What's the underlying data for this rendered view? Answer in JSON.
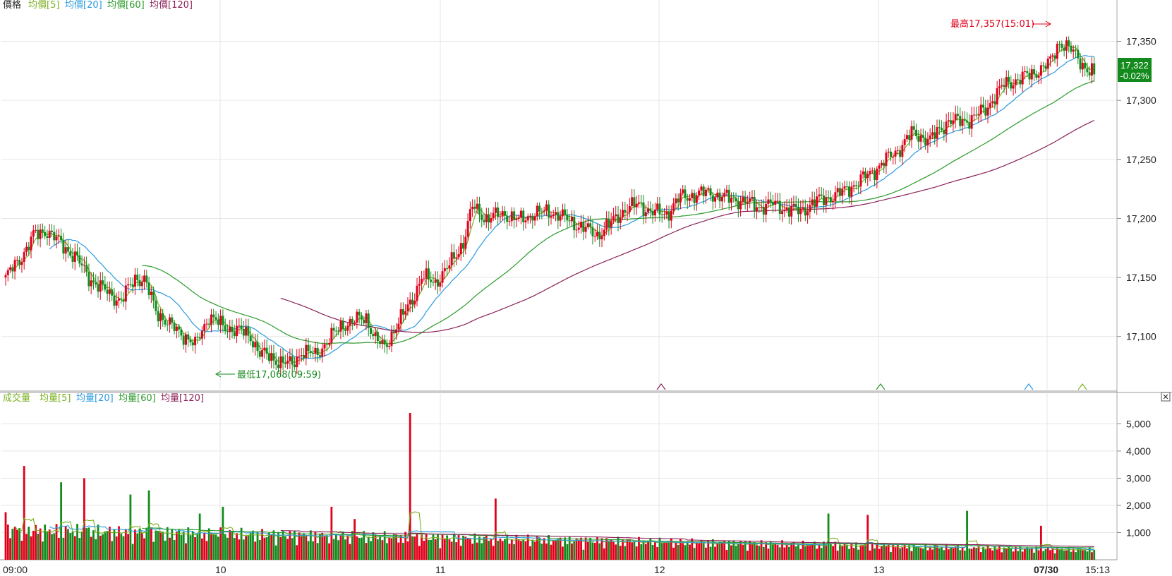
{
  "colors": {
    "up": "#e0001b",
    "down": "#128a1c",
    "ma5": "#7ab020",
    "ma20": "#2a9ae0",
    "ma60": "#2a9a2a",
    "ma120": "#8a2058",
    "grid": "#e6e6e6",
    "last_price_bg": "#128a1c"
  },
  "price_panel": {
    "legend": [
      {
        "text": "價格",
        "color": "#222222"
      },
      {
        "text": "均價[5]",
        "color": "#7ab020"
      },
      {
        "text": "均價[20]",
        "color": "#2a9ae0"
      },
      {
        "text": "均價[60]",
        "color": "#2a9a2a"
      },
      {
        "text": "均價[120]",
        "color": "#8a2058"
      }
    ],
    "high_annotation": "最高17,357(15:01)",
    "low_annotation": "最低17,068(09:59)",
    "last_price": "17,322",
    "last_change": "-0.02%"
  },
  "volume_panel": {
    "legend": [
      {
        "text": "成交量",
        "color": "#7ab020"
      },
      {
        "text": "均量[5]",
        "color": "#7ab020"
      },
      {
        "text": "均量[20]",
        "color": "#2a9ae0"
      },
      {
        "text": "均量[60]",
        "color": "#2a9a2a"
      },
      {
        "text": "均量[120]",
        "color": "#8a2058"
      }
    ],
    "close_glyph": "✕"
  },
  "chart_data": [
    {
      "type": "candlestick",
      "title": "價格",
      "x_labels": [
        "09:00",
        "10",
        "11",
        "12",
        "13",
        "07/30",
        "15:13"
      ],
      "y_ticks": [
        "17,100",
        "17,150",
        "17,200",
        "17,250",
        "17,300",
        "17,350"
      ],
      "ylim": [
        17055,
        17385
      ],
      "high": 17357,
      "low": 17068,
      "last": 17322,
      "change_pct": "-0.02%",
      "grid": true,
      "close_path": [
        [
          0,
          17150
        ],
        [
          6,
          17165
        ],
        [
          12,
          17185
        ],
        [
          18,
          17190
        ],
        [
          24,
          17178
        ],
        [
          30,
          17168
        ],
        [
          36,
          17150
        ],
        [
          42,
          17140
        ],
        [
          50,
          17130
        ],
        [
          56,
          17150
        ],
        [
          60,
          17148
        ],
        [
          65,
          17122
        ],
        [
          72,
          17108
        ],
        [
          78,
          17100
        ],
        [
          82,
          17092
        ],
        [
          88,
          17118
        ],
        [
          94,
          17108
        ],
        [
          100,
          17106
        ],
        [
          106,
          17100
        ],
        [
          110,
          17086
        ],
        [
          115,
          17082
        ],
        [
          120,
          17078
        ],
        [
          124,
          17076
        ],
        [
          128,
          17088
        ],
        [
          134,
          17084
        ],
        [
          140,
          17098
        ],
        [
          146,
          17110
        ],
        [
          152,
          17114
        ],
        [
          156,
          17116
        ],
        [
          160,
          17098
        ],
        [
          164,
          17090
        ],
        [
          168,
          17106
        ],
        [
          172,
          17118
        ],
        [
          176,
          17132
        ],
        [
          180,
          17150
        ],
        [
          186,
          17146
        ],
        [
          192,
          17160
        ],
        [
          198,
          17180
        ],
        [
          202,
          17210
        ],
        [
          208,
          17200
        ],
        [
          216,
          17204
        ],
        [
          222,
          17198
        ],
        [
          228,
          17204
        ],
        [
          236,
          17206
        ],
        [
          244,
          17198
        ],
        [
          250,
          17192
        ],
        [
          256,
          17186
        ],
        [
          262,
          17196
        ],
        [
          268,
          17208
        ],
        [
          274,
          17212
        ],
        [
          280,
          17205
        ],
        [
          286,
          17204
        ],
        [
          292,
          17218
        ],
        [
          298,
          17220
        ],
        [
          304,
          17222
        ],
        [
          310,
          17218
        ],
        [
          316,
          17216
        ],
        [
          320,
          17214
        ],
        [
          326,
          17210
        ],
        [
          332,
          17212
        ],
        [
          338,
          17208
        ],
        [
          344,
          17206
        ],
        [
          350,
          17214
        ],
        [
          356,
          17218
        ],
        [
          362,
          17222
        ],
        [
          368,
          17230
        ],
        [
          374,
          17238
        ],
        [
          380,
          17248
        ],
        [
          386,
          17258
        ],
        [
          392,
          17272
        ],
        [
          396,
          17270
        ],
        [
          400,
          17266
        ],
        [
          404,
          17275
        ],
        [
          408,
          17283
        ],
        [
          414,
          17282
        ],
        [
          418,
          17285
        ],
        [
          424,
          17292
        ],
        [
          428,
          17304
        ],
        [
          432,
          17313
        ],
        [
          438,
          17318
        ],
        [
          444,
          17322
        ],
        [
          448,
          17327
        ],
        [
          452,
          17332
        ],
        [
          456,
          17350
        ],
        [
          460,
          17344
        ],
        [
          464,
          17336
        ],
        [
          468,
          17326
        ],
        [
          472,
          17322
        ]
      ]
    },
    {
      "type": "bar",
      "title": "成交量",
      "y_ticks": [
        "1,000",
        "2,000",
        "3,000",
        "4,000",
        "5,000"
      ],
      "ylim": [
        0,
        5400
      ],
      "peaks": [
        [
          0,
          1750
        ],
        [
          8,
          3450
        ],
        [
          24,
          2850
        ],
        [
          34,
          3000
        ],
        [
          54,
          2400
        ],
        [
          62,
          2550
        ],
        [
          84,
          1700
        ],
        [
          94,
          1950
        ],
        [
          141,
          1950
        ],
        [
          151,
          1500
        ],
        [
          175,
          5400
        ],
        [
          212,
          2250
        ],
        [
          356,
          1700
        ],
        [
          373,
          1650
        ],
        [
          416,
          1800
        ],
        [
          448,
          1250
        ]
      ],
      "grid": true
    }
  ]
}
